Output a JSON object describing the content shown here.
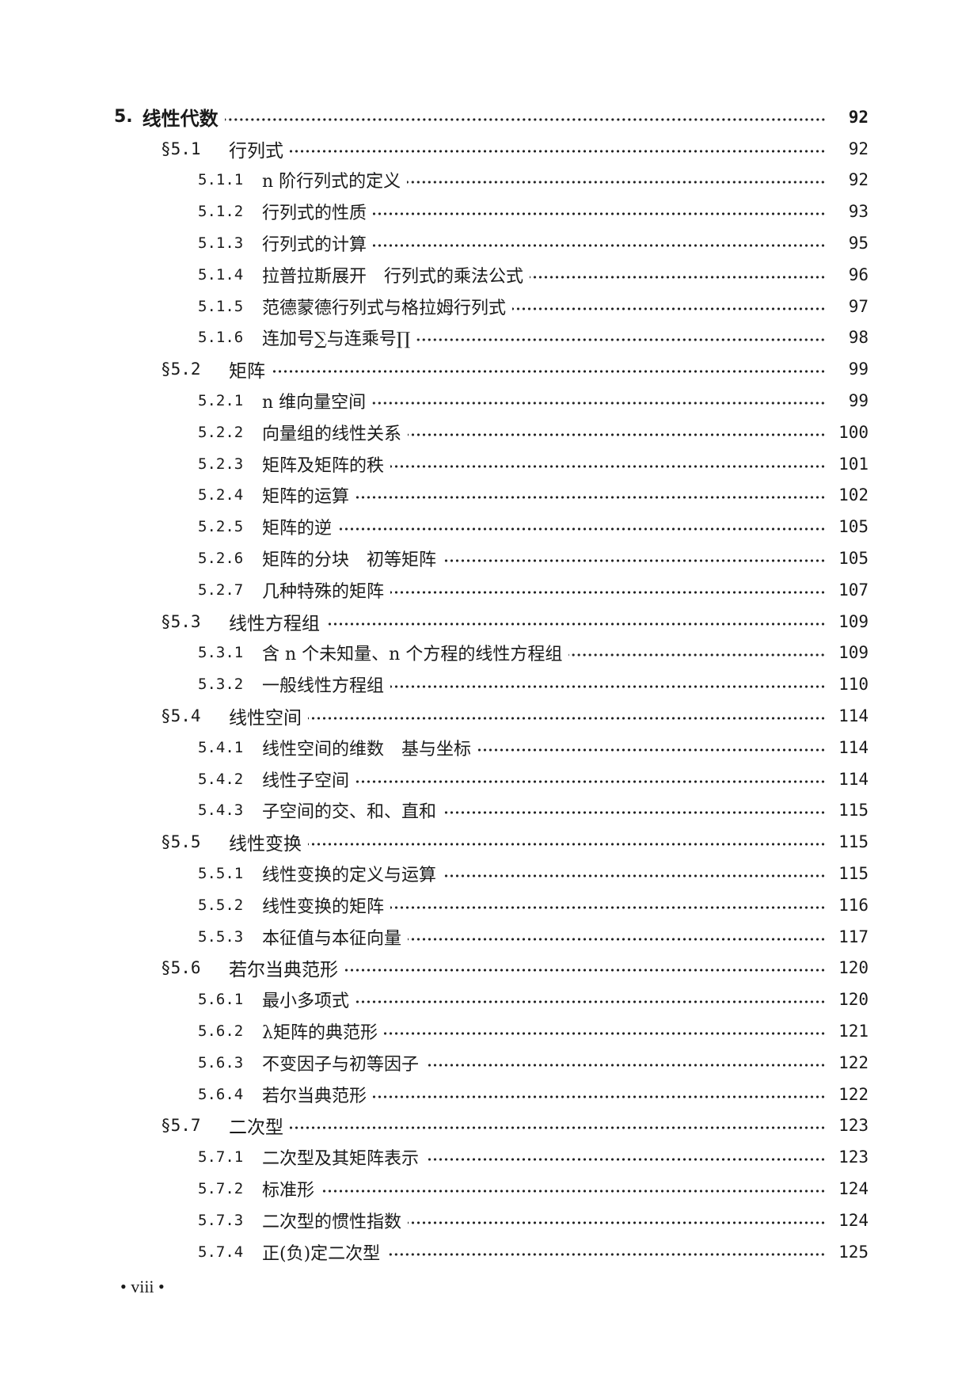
{
  "toc": [
    {
      "level": "chapter",
      "num": "5.",
      "title": "线性代数",
      "page": "92"
    },
    {
      "level": "section",
      "num": "§5.1",
      "title": "行列式",
      "page": "92"
    },
    {
      "level": "sub",
      "num": "5.1.1",
      "title": "n 阶行列式的定义",
      "page": "92"
    },
    {
      "level": "sub",
      "num": "5.1.2",
      "title": "行列式的性质",
      "page": "93"
    },
    {
      "level": "sub",
      "num": "5.1.3",
      "title": "行列式的计算",
      "page": "95"
    },
    {
      "level": "sub",
      "num": "5.1.4",
      "title": "拉普拉斯展开　行列式的乘法公式",
      "page": "96"
    },
    {
      "level": "sub",
      "num": "5.1.5",
      "title": "范德蒙德行列式与格拉姆行列式",
      "page": "97"
    },
    {
      "level": "sub",
      "num": "5.1.6",
      "title": "连加号∑与连乘号∏",
      "page": "98"
    },
    {
      "level": "section",
      "num": "§5.2",
      "title": "矩阵",
      "page": "99"
    },
    {
      "level": "sub",
      "num": "5.2.1",
      "title": "n 维向量空间",
      "page": "99"
    },
    {
      "level": "sub",
      "num": "5.2.2",
      "title": "向量组的线性关系",
      "page": "100"
    },
    {
      "level": "sub",
      "num": "5.2.3",
      "title": "矩阵及矩阵的秩",
      "page": "101"
    },
    {
      "level": "sub",
      "num": "5.2.4",
      "title": "矩阵的运算",
      "page": "102"
    },
    {
      "level": "sub",
      "num": "5.2.5",
      "title": "矩阵的逆",
      "page": "105"
    },
    {
      "level": "sub",
      "num": "5.2.6",
      "title": "矩阵的分块　初等矩阵",
      "page": "105"
    },
    {
      "level": "sub",
      "num": "5.2.7",
      "title": "几种特殊的矩阵",
      "page": "107"
    },
    {
      "level": "section",
      "num": "§5.3",
      "title": "线性方程组",
      "page": "109"
    },
    {
      "level": "sub",
      "num": "5.3.1",
      "title": "含 n 个未知量、n 个方程的线性方程组",
      "page": "109"
    },
    {
      "level": "sub",
      "num": "5.3.2",
      "title": "一般线性方程组",
      "page": "110"
    },
    {
      "level": "section",
      "num": "§5.4",
      "title": "线性空间",
      "page": "114"
    },
    {
      "level": "sub",
      "num": "5.4.1",
      "title": "线性空间的维数　基与坐标",
      "page": "114"
    },
    {
      "level": "sub",
      "num": "5.4.2",
      "title": "线性子空间",
      "page": "114"
    },
    {
      "level": "sub",
      "num": "5.4.3",
      "title": "子空间的交、和、直和",
      "page": "115"
    },
    {
      "level": "section",
      "num": "§5.5",
      "title": "线性变换",
      "page": "115"
    },
    {
      "level": "sub",
      "num": "5.5.1",
      "title": "线性变换的定义与运算",
      "page": "115"
    },
    {
      "level": "sub",
      "num": "5.5.2",
      "title": "线性变换的矩阵",
      "page": "116"
    },
    {
      "level": "sub",
      "num": "5.5.3",
      "title": "本征值与本征向量",
      "page": "117"
    },
    {
      "level": "section",
      "num": "§5.6",
      "title": "若尔当典范形",
      "page": "120"
    },
    {
      "level": "sub",
      "num": "5.6.1",
      "title": "最小多项式",
      "page": "120"
    },
    {
      "level": "sub",
      "num": "5.6.2",
      "title": "λ矩阵的典范形",
      "page": "121"
    },
    {
      "level": "sub",
      "num": "5.6.3",
      "title": "不变因子与初等因子",
      "page": "122"
    },
    {
      "level": "sub",
      "num": "5.6.4",
      "title": "若尔当典范形",
      "page": "122"
    },
    {
      "level": "section",
      "num": "§5.7",
      "title": "二次型",
      "page": "123"
    },
    {
      "level": "sub",
      "num": "5.7.1",
      "title": "二次型及其矩阵表示",
      "page": "123"
    },
    {
      "level": "sub",
      "num": "5.7.2",
      "title": "标准形",
      "page": "124"
    },
    {
      "level": "sub",
      "num": "5.7.3",
      "title": "二次型的惯性指数",
      "page": "124"
    },
    {
      "level": "sub",
      "num": "5.7.4",
      "title": "正(负)定二次型",
      "page": "125"
    }
  ],
  "folio": "• viii •"
}
